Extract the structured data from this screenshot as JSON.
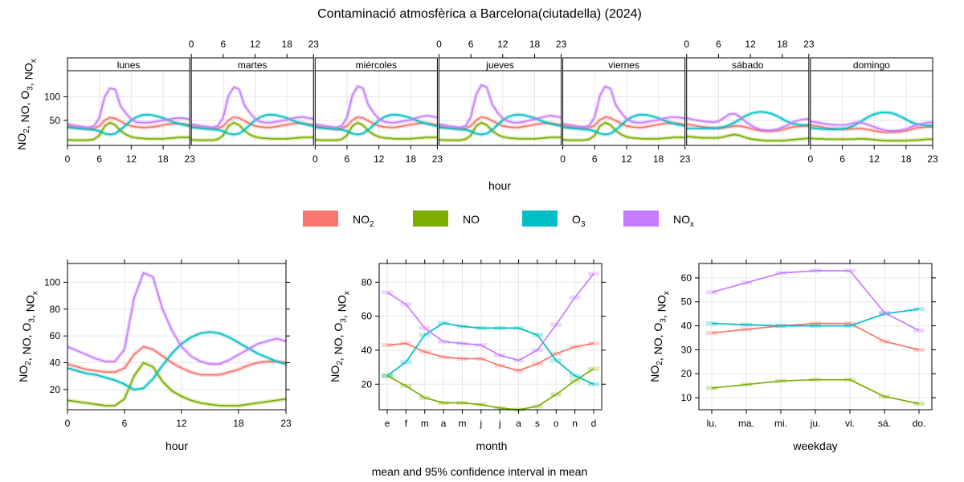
{
  "title": "Contaminació atmosfèrica a Barcelona(ciutadella) (2024)",
  "footer": "mean and 95% confidence interval in mean",
  "colors": {
    "NO2": "#F8766D",
    "NO": "#7CAE00",
    "O3": "#00BFC4",
    "NOx": "#C77CFF"
  },
  "legend": [
    {
      "key": "NO2",
      "base": "NO",
      "sub": "2"
    },
    {
      "key": "NO",
      "base": "NO",
      "sub": ""
    },
    {
      "key": "O3",
      "base": "O",
      "sub": "3"
    },
    {
      "key": "NOx",
      "base": "NO",
      "sub": "x"
    }
  ],
  "ylabel_parts": [
    {
      "base": "NO",
      "sub": "2"
    },
    {
      "base": ", NO, ",
      "sub": ""
    },
    {
      "base": "O",
      "sub": "3"
    },
    {
      "base": ", ",
      "sub": ""
    },
    {
      "base": "NO",
      "sub": "x"
    }
  ],
  "chart_data": [
    {
      "type": "line",
      "name": "hour by weekday",
      "xlabel": "hour",
      "x_ticks": [
        0,
        6,
        12,
        18,
        23
      ],
      "y_ticks": [
        50,
        100
      ],
      "ylim": [
        -3,
        155
      ],
      "panels": [
        "lunes",
        "martes",
        "miércoles",
        "jueves",
        "viernes",
        "sábado",
        "domingo"
      ],
      "series": {
        "NO2": [
          [
            38,
            36,
            34,
            33,
            32,
            33,
            38,
            50,
            56,
            54,
            48,
            42,
            38,
            36,
            35,
            35,
            36,
            38,
            40,
            42,
            43,
            43,
            42,
            40
          ],
          [
            38,
            36,
            34,
            33,
            32,
            33,
            38,
            50,
            57,
            55,
            49,
            43,
            38,
            36,
            35,
            35,
            37,
            39,
            41,
            43,
            44,
            44,
            42,
            40
          ],
          [
            38,
            36,
            34,
            33,
            32,
            33,
            38,
            50,
            57,
            55,
            49,
            43,
            38,
            36,
            35,
            35,
            37,
            39,
            41,
            43,
            44,
            44,
            42,
            40
          ],
          [
            38,
            36,
            34,
            33,
            32,
            33,
            38,
            50,
            57,
            55,
            49,
            43,
            38,
            36,
            35,
            35,
            37,
            39,
            41,
            43,
            44,
            44,
            42,
            40
          ],
          [
            39,
            37,
            35,
            34,
            33,
            34,
            39,
            51,
            57,
            55,
            49,
            43,
            38,
            36,
            35,
            35,
            37,
            39,
            41,
            43,
            44,
            44,
            43,
            41
          ],
          [
            42,
            40,
            38,
            36,
            35,
            34,
            33,
            34,
            36,
            38,
            38,
            36,
            33,
            30,
            28,
            27,
            27,
            28,
            30,
            33,
            36,
            37,
            38,
            38
          ],
          [
            40,
            38,
            36,
            34,
            33,
            32,
            31,
            31,
            32,
            33,
            32,
            30,
            28,
            26,
            25,
            25,
            25,
            26,
            28,
            31,
            34,
            35,
            36,
            36
          ]
        ],
        "NO": [
          [
            9,
            8,
            8,
            8,
            8,
            10,
            18,
            38,
            45,
            40,
            28,
            20,
            15,
            13,
            12,
            11,
            11,
            11,
            11,
            12,
            13,
            14,
            14,
            14
          ],
          [
            9,
            8,
            8,
            8,
            8,
            10,
            18,
            38,
            45,
            40,
            28,
            20,
            15,
            13,
            12,
            11,
            11,
            11,
            11,
            12,
            13,
            14,
            14,
            14
          ],
          [
            9,
            8,
            8,
            8,
            8,
            10,
            18,
            38,
            45,
            40,
            28,
            20,
            15,
            13,
            12,
            11,
            11,
            11,
            11,
            12,
            13,
            14,
            14,
            14
          ],
          [
            9,
            8,
            8,
            8,
            8,
            10,
            18,
            38,
            45,
            40,
            28,
            20,
            15,
            13,
            12,
            11,
            11,
            11,
            11,
            12,
            13,
            14,
            14,
            14
          ],
          [
            9,
            8,
            8,
            8,
            8,
            10,
            18,
            38,
            45,
            40,
            28,
            20,
            15,
            13,
            12,
            11,
            11,
            11,
            11,
            12,
            13,
            14,
            14,
            14
          ],
          [
            16,
            15,
            14,
            13,
            13,
            13,
            13,
            15,
            18,
            20,
            18,
            14,
            11,
            9,
            8,
            7,
            7,
            7,
            7,
            8,
            9,
            10,
            11,
            12
          ],
          [
            12,
            11,
            11,
            10,
            10,
            10,
            10,
            10,
            10,
            11,
            11,
            10,
            9,
            8,
            7,
            7,
            7,
            7,
            7,
            8,
            8,
            9,
            10,
            10
          ]
        ],
        "O3": [
          [
            35,
            34,
            33,
            32,
            31,
            30,
            27,
            22,
            20,
            22,
            30,
            40,
            50,
            57,
            61,
            62,
            61,
            58,
            55,
            50,
            46,
            43,
            40,
            38
          ],
          [
            35,
            34,
            33,
            32,
            31,
            30,
            27,
            22,
            20,
            22,
            30,
            40,
            50,
            57,
            61,
            62,
            61,
            58,
            55,
            50,
            46,
            43,
            40,
            38
          ],
          [
            35,
            34,
            33,
            32,
            31,
            30,
            27,
            22,
            20,
            22,
            30,
            40,
            50,
            57,
            61,
            62,
            61,
            58,
            55,
            50,
            46,
            43,
            40,
            38
          ],
          [
            35,
            34,
            33,
            32,
            31,
            30,
            27,
            22,
            20,
            22,
            30,
            40,
            50,
            57,
            61,
            62,
            61,
            58,
            55,
            50,
            46,
            43,
            40,
            38
          ],
          [
            35,
            34,
            33,
            32,
            31,
            30,
            27,
            22,
            20,
            22,
            30,
            40,
            50,
            57,
            61,
            62,
            61,
            58,
            55,
            50,
            46,
            43,
            40,
            38
          ],
          [
            33,
            33,
            33,
            33,
            33,
            33,
            34,
            36,
            40,
            45,
            52,
            59,
            64,
            67,
            68,
            67,
            64,
            59,
            53,
            47,
            43,
            41,
            40,
            40
          ],
          [
            34,
            33,
            32,
            31,
            31,
            31,
            32,
            34,
            38,
            44,
            51,
            58,
            63,
            66,
            67,
            66,
            63,
            58,
            52,
            46,
            42,
            40,
            39,
            39
          ]
        ],
        "NOx": [
          [
            43,
            40,
            38,
            36,
            35,
            38,
            55,
            100,
            118,
            115,
            80,
            65,
            52,
            46,
            45,
            45,
            46,
            48,
            50,
            52,
            54,
            55,
            54,
            52
          ],
          [
            42,
            40,
            38,
            36,
            35,
            38,
            56,
            102,
            120,
            116,
            82,
            66,
            53,
            47,
            45,
            45,
            47,
            49,
            51,
            54,
            56,
            57,
            55,
            53
          ],
          [
            42,
            40,
            38,
            36,
            35,
            38,
            56,
            103,
            122,
            118,
            83,
            66,
            53,
            47,
            45,
            45,
            47,
            49,
            51,
            55,
            58,
            60,
            58,
            56
          ],
          [
            42,
            40,
            38,
            36,
            35,
            38,
            57,
            104,
            125,
            120,
            84,
            67,
            54,
            48,
            45,
            45,
            47,
            50,
            52,
            55,
            58,
            60,
            58,
            56
          ],
          [
            43,
            41,
            39,
            37,
            36,
            39,
            57,
            103,
            122,
            117,
            82,
            66,
            53,
            47,
            45,
            45,
            47,
            49,
            51,
            54,
            56,
            57,
            56,
            54
          ],
          [
            55,
            52,
            50,
            48,
            47,
            46,
            48,
            55,
            63,
            64,
            58,
            48,
            40,
            34,
            30,
            29,
            29,
            31,
            35,
            40,
            46,
            50,
            52,
            53
          ],
          [
            48,
            46,
            44,
            42,
            41,
            40,
            40,
            41,
            44,
            46,
            44,
            40,
            36,
            32,
            29,
            28,
            28,
            29,
            32,
            36,
            40,
            43,
            45,
            46
          ]
        ]
      }
    },
    {
      "type": "line",
      "xlabel": "hour",
      "categories": [
        0,
        1,
        2,
        3,
        4,
        5,
        6,
        7,
        8,
        9,
        10,
        11,
        12,
        13,
        14,
        15,
        16,
        17,
        18,
        19,
        20,
        21,
        22,
        23
      ],
      "x_ticks": [
        0,
        6,
        12,
        18,
        23
      ],
      "y_ticks": [
        20,
        40,
        60,
        80,
        100
      ],
      "ylim": [
        5,
        114
      ],
      "series": [
        {
          "name": "NO2",
          "values": [
            39,
            37,
            35,
            34,
            33,
            33,
            36,
            46,
            52,
            50,
            45,
            40,
            36,
            33,
            31,
            31,
            31,
            33,
            35,
            38,
            40,
            41,
            41,
            40
          ]
        },
        {
          "name": "NO",
          "values": [
            12,
            11,
            10,
            9,
            8,
            8,
            13,
            30,
            40,
            37,
            26,
            19,
            15,
            12,
            10,
            9,
            8,
            8,
            8,
            9,
            10,
            11,
            12,
            13
          ]
        },
        {
          "name": "O3",
          "values": [
            36,
            34,
            32,
            31,
            29,
            27,
            24,
            20,
            21,
            28,
            38,
            47,
            54,
            59,
            62,
            63,
            62,
            59,
            55,
            51,
            47,
            44,
            41,
            39
          ]
        },
        {
          "name": "NOx",
          "values": [
            52,
            49,
            46,
            43,
            41,
            41,
            50,
            88,
            107,
            104,
            80,
            64,
            52,
            45,
            41,
            39,
            39,
            42,
            46,
            50,
            54,
            56,
            58,
            56
          ]
        }
      ]
    },
    {
      "type": "line",
      "xlabel": "month",
      "categories": [
        "e",
        "f",
        "m",
        "a",
        "m",
        "j",
        "j",
        "a",
        "s",
        "o",
        "n",
        "d"
      ],
      "y_ticks": [
        20,
        40,
        60,
        80
      ],
      "ylim": [
        5,
        91
      ],
      "series": [
        {
          "name": "NO2",
          "values": [
            43,
            44,
            39,
            36,
            35,
            35,
            31,
            28,
            32,
            38,
            42,
            44
          ]
        },
        {
          "name": "NO",
          "values": [
            25,
            19,
            12,
            9,
            9,
            8,
            6,
            5,
            7,
            14,
            22,
            29
          ]
        },
        {
          "name": "O3",
          "values": [
            25,
            33,
            49,
            56,
            54,
            53,
            53,
            53,
            49,
            34,
            25,
            20
          ]
        },
        {
          "name": "NOx",
          "values": [
            74,
            67,
            53,
            45,
            44,
            43,
            37,
            34,
            40,
            55,
            71,
            85
          ]
        }
      ]
    },
    {
      "type": "line",
      "xlabel": "weekday",
      "categories": [
        "lu.",
        "ma.",
        "mi.",
        "ju.",
        "vi.",
        "sá.",
        "do."
      ],
      "y_ticks": [
        10,
        20,
        30,
        40,
        50,
        60
      ],
      "ylim": [
        5,
        66
      ],
      "series": [
        {
          "name": "NO2",
          "values": [
            37,
            38.5,
            40,
            41,
            41,
            33.5,
            30
          ]
        },
        {
          "name": "NO",
          "values": [
            14,
            15.5,
            17,
            17.5,
            17.5,
            10.5,
            7.5
          ]
        },
        {
          "name": "O3",
          "values": [
            41,
            40.5,
            40,
            40,
            40,
            45,
            47
          ]
        },
        {
          "name": "NOx",
          "values": [
            54,
            58,
            62,
            63,
            63,
            45.5,
            38
          ]
        }
      ]
    }
  ]
}
